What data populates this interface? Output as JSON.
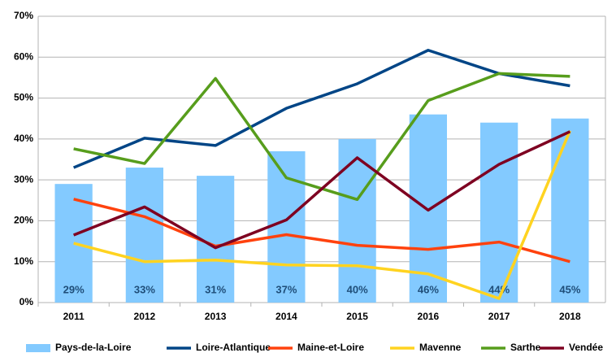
{
  "chart_data": {
    "type": "combo",
    "categories": [
      "2011",
      "2012",
      "2013",
      "2014",
      "2015",
      "2016",
      "2017",
      "2018"
    ],
    "ylim": [
      0,
      70
    ],
    "yticks": [
      {
        "value": 0,
        "label": "0%"
      },
      {
        "value": 10,
        "label": "10%"
      },
      {
        "value": 20,
        "label": "20%"
      },
      {
        "value": 30,
        "label": "30%"
      },
      {
        "value": 40,
        "label": "40%"
      },
      {
        "value": 50,
        "label": "50%"
      },
      {
        "value": 60,
        "label": "60%"
      },
      {
        "value": 70,
        "label": "70%"
      }
    ],
    "grid": true,
    "legend": "bottom",
    "series": [
      {
        "name": "Pays-de-la-Loire",
        "type": "bar",
        "color": "#83caff",
        "values": [
          29,
          33,
          31,
          37,
          40,
          46,
          44,
          45
        ],
        "value_labels": [
          "29%",
          "33%",
          "31%",
          "37%",
          "40%",
          "46%",
          "44%",
          "45%"
        ]
      },
      {
        "name": "Loire-Atlantique",
        "type": "line",
        "color": "#004586",
        "values": [
          33,
          40.2,
          38.4,
          47.5,
          53.5,
          61.7,
          56,
          53
        ]
      },
      {
        "name": "Maine-et-Loire",
        "type": "line",
        "color": "#ff420e",
        "values": [
          25.3,
          21,
          13.8,
          16.6,
          14,
          13,
          14.8,
          10
        ]
      },
      {
        "name": "Mavenne",
        "type": "line",
        "color": "#ffd320",
        "values": [
          14.5,
          10,
          10.4,
          9.2,
          9,
          7,
          1,
          42
        ]
      },
      {
        "name": "Sarthe",
        "type": "line",
        "color": "#579d1c",
        "values": [
          37.6,
          34,
          54.8,
          30.5,
          25.2,
          49.4,
          56,
          55.3
        ]
      },
      {
        "name": "Vendée",
        "type": "line",
        "color": "#7e0021",
        "values": [
          16.5,
          23.4,
          13.4,
          20.2,
          35.4,
          22.6,
          33.8,
          41.8
        ]
      }
    ]
  }
}
